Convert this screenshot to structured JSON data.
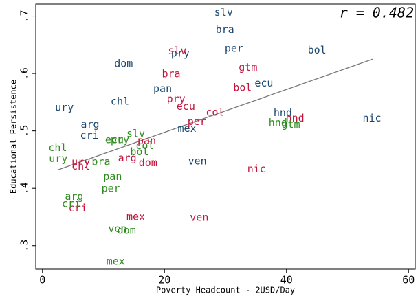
{
  "chart_data": {
    "type": "scatter",
    "x_label": "Poverty Headcount - 2USD/Day",
    "y_label": "Educational Persistence",
    "annotation": "r = 0.482",
    "xlim": [
      -1.1,
      61.1
    ],
    "ylim": [
      0.259,
      0.721
    ],
    "xticks": [
      0,
      20,
      40,
      60
    ],
    "yticks": [
      {
        "value": 0.3,
        "label": ".3"
      },
      {
        "value": 0.4,
        "label": ".4"
      },
      {
        "value": 0.5,
        "label": ".5"
      },
      {
        "value": 0.6,
        "label": ".6"
      },
      {
        "value": 0.7,
        "label": ".7"
      }
    ],
    "fit_line": {
      "color": "#777777",
      "x": [
        2.5,
        54.1
      ],
      "values": [
        0.432,
        0.625
      ]
    },
    "series": [
      {
        "color": "#1a476f",
        "labels": [
          "slv",
          "bra",
          "per",
          "bol",
          "dom",
          "pry",
          "pan",
          "ecu",
          "chl",
          "ury",
          "hnd",
          "nic",
          "mex",
          "arg",
          "cri",
          "ven"
        ],
        "x": [
          29.7,
          29.9,
          31.4,
          45.0,
          13.3,
          22.6,
          19.7,
          36.3,
          12.7,
          3.6,
          39.4,
          54.0,
          23.7,
          7.8,
          7.7,
          25.4
        ],
        "values": [
          0.706,
          0.676,
          0.643,
          0.64,
          0.617,
          0.635,
          0.573,
          0.583,
          0.551,
          0.54,
          0.531,
          0.522,
          0.504,
          0.511,
          0.492,
          0.447
        ]
      },
      {
        "color": "#c4143c",
        "labels": [
          "slv",
          "bra",
          "gtm",
          "bol",
          "pry",
          "ecu",
          "col",
          "per",
          "hnd",
          "pan",
          "arg",
          "dom",
          "ury",
          "chl",
          "nic",
          "mex",
          "ven",
          "cri"
        ],
        "x": [
          22.1,
          21.1,
          33.7,
          32.8,
          21.9,
          23.5,
          28.3,
          25.3,
          41.4,
          17.1,
          13.9,
          17.3,
          6.3,
          6.3,
          35.1,
          15.3,
          25.7,
          5.8
        ],
        "values": [
          0.639,
          0.599,
          0.61,
          0.575,
          0.555,
          0.542,
          0.532,
          0.516,
          0.522,
          0.482,
          0.452,
          0.444,
          0.445,
          0.438,
          0.433,
          0.35,
          0.349,
          0.365
        ]
      },
      {
        "color": "#2e8b1e",
        "labels": [
          "slv",
          "ecu",
          "pry",
          "col",
          "bol",
          "chl",
          "ury",
          "bra",
          "hnd",
          "gtm",
          "pan",
          "per",
          "arg",
          "cri",
          "ven",
          "dom",
          "mex"
        ],
        "x": [
          15.3,
          11.8,
          12.7,
          16.8,
          15.9,
          2.5,
          2.6,
          9.6,
          38.6,
          40.7,
          11.5,
          11.2,
          5.2,
          4.7,
          12.3,
          13.8,
          12.0
        ],
        "values": [
          0.495,
          0.484,
          0.484,
          0.474,
          0.463,
          0.47,
          0.451,
          0.446,
          0.514,
          0.511,
          0.42,
          0.399,
          0.385,
          0.373,
          0.329,
          0.326,
          0.272
        ]
      }
    ]
  }
}
